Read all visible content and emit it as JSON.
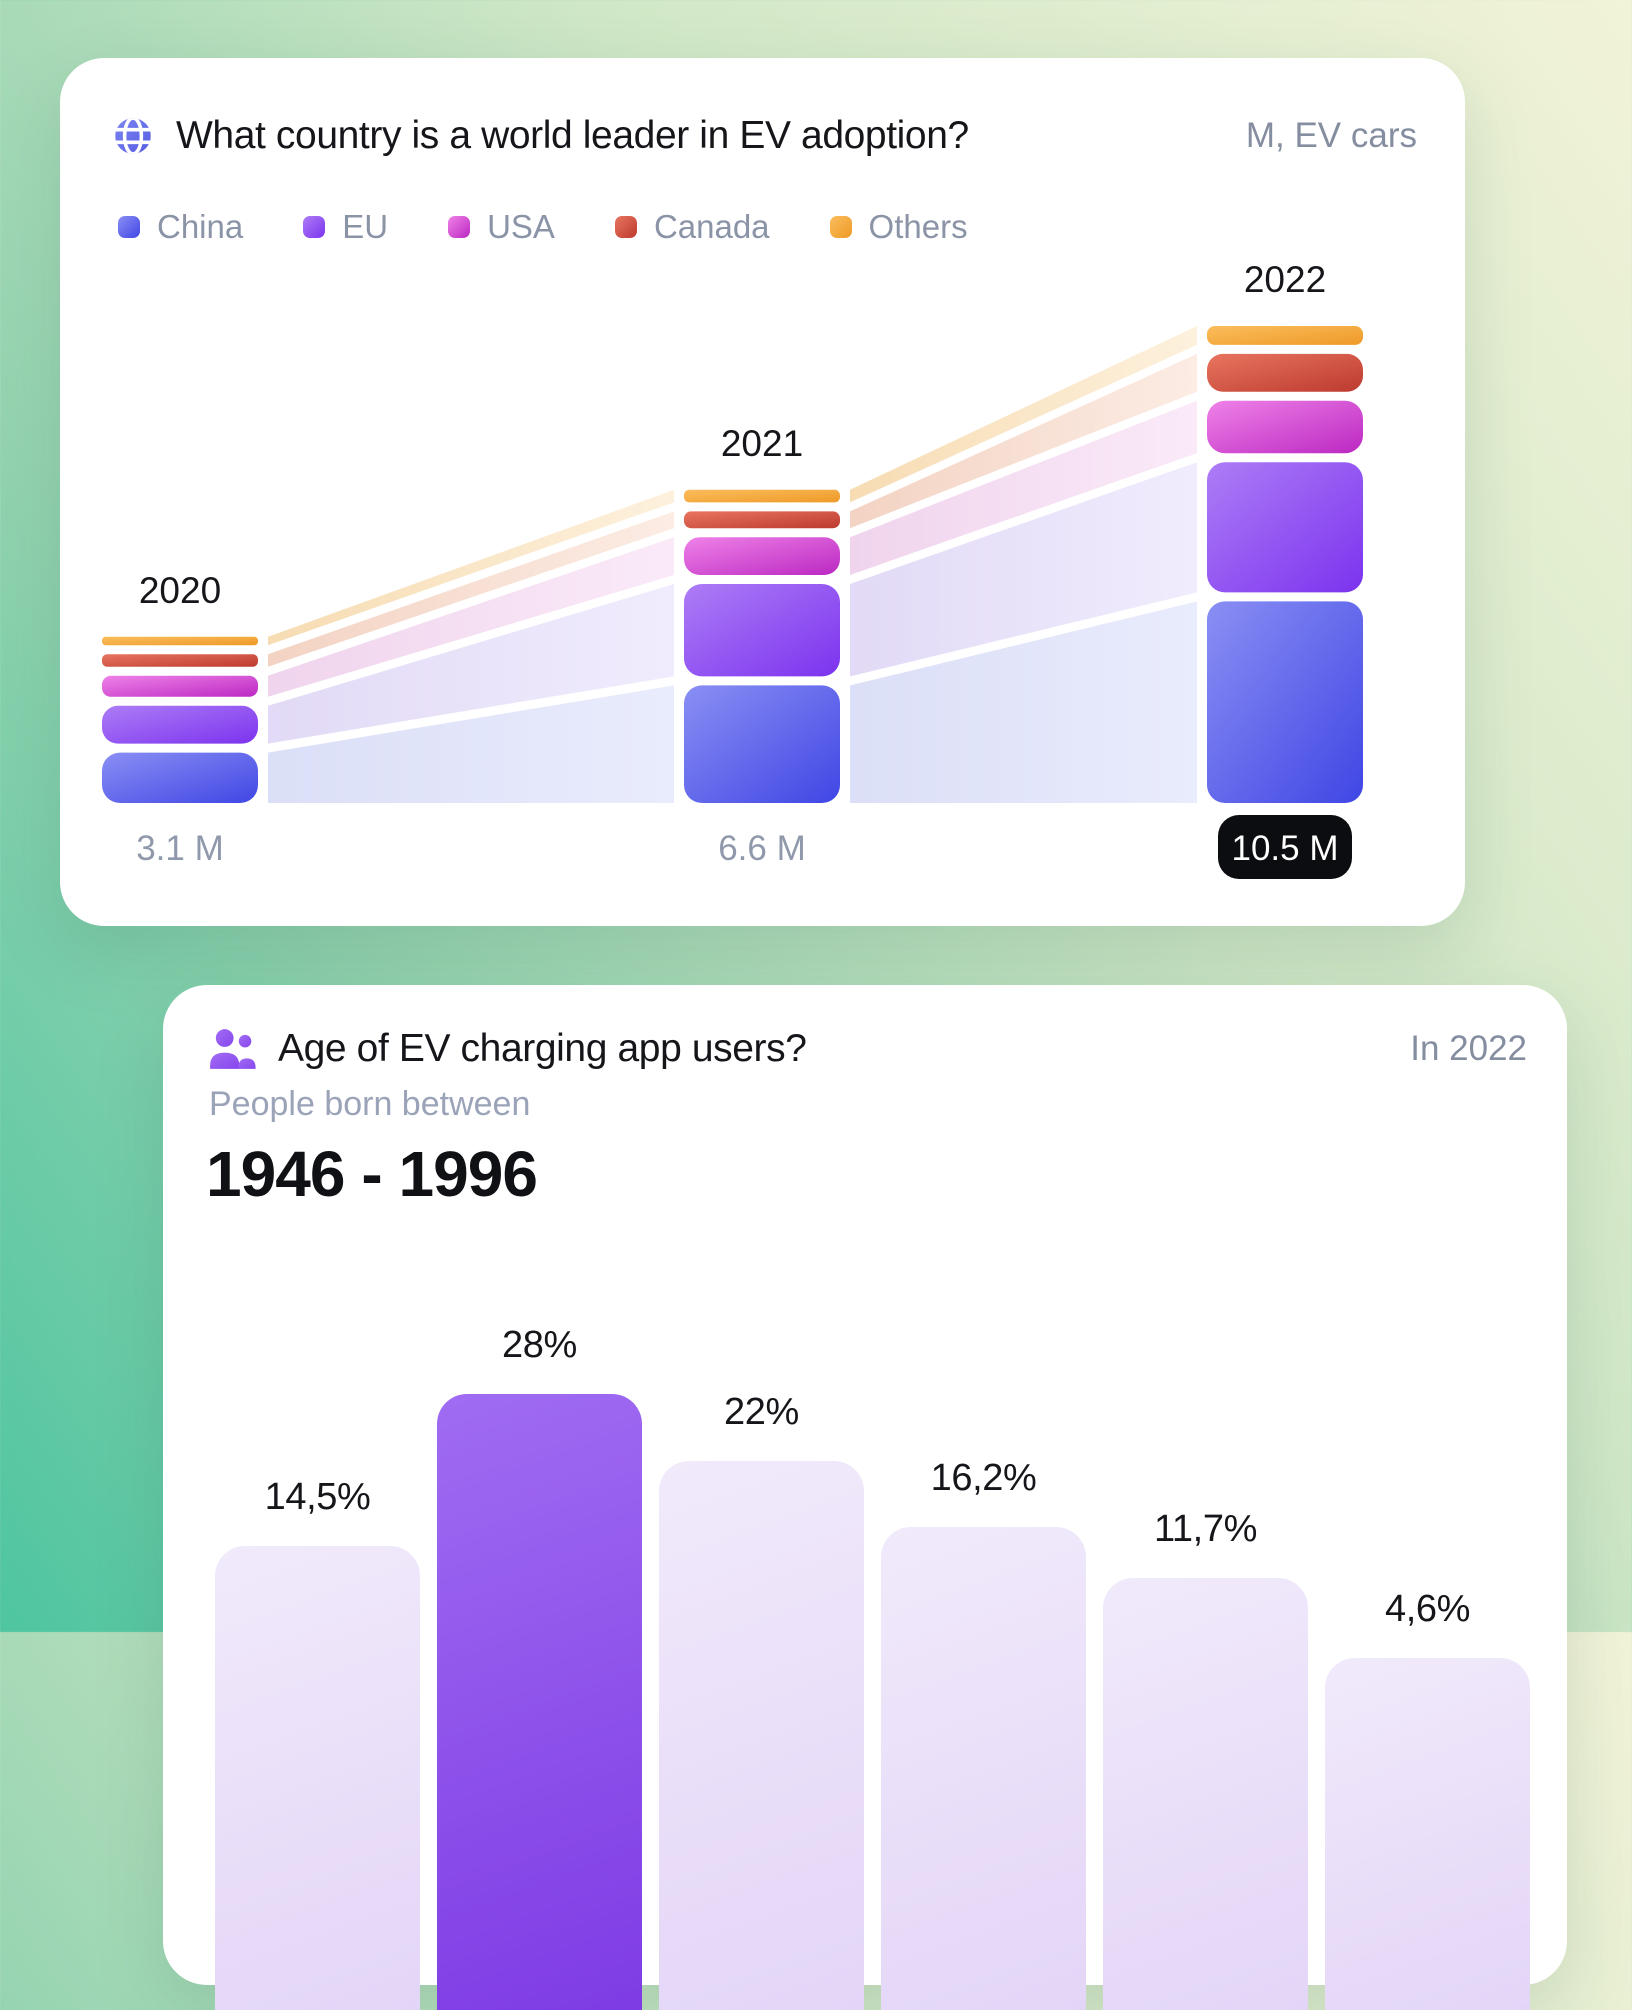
{
  "cards": {
    "ev_adoption": {
      "icon": "globe-icon",
      "title": "What country is a world leader in EV adoption?",
      "unit_label": "M, EV cars"
    },
    "age_users": {
      "icon": "people-icon",
      "title": "Age of EV charging app users?",
      "period_label": "In 2022",
      "subtitle": "People born between",
      "birth_range": "1946 - 1996"
    }
  },
  "chart_data": [
    {
      "id": "ev-adoption-flow",
      "type": "bar",
      "variant": "stacked-flow",
      "title": "What country is a world leader in EV adoption?",
      "unit": "M, EV cars",
      "legend_position": "top",
      "categories": [
        "2020",
        "2021",
        "2022"
      ],
      "totals": [
        3.1,
        6.6,
        10.5
      ],
      "total_labels": [
        "3.1 M",
        "6.6 M",
        "10.5 M"
      ],
      "highlight_total_index": 2,
      "series": [
        {
          "name": "China",
          "values": [
            1.2,
            2.8,
            4.8
          ],
          "color": "#5f68ee",
          "bar_gradient": [
            "#8a8ff4",
            "#4046e4"
          ],
          "band_gradient": [
            "#dbdff7",
            "#e9ecfc"
          ]
        },
        {
          "name": "EU",
          "values": [
            0.9,
            2.2,
            3.1
          ],
          "color": "#9766f2",
          "bar_gradient": [
            "#ad7df6",
            "#7c33ee"
          ],
          "band_gradient": [
            "#e2daf6",
            "#f0ecfd"
          ]
        },
        {
          "name": "USA",
          "values": [
            0.5,
            0.9,
            1.25
          ],
          "color": "#d44fd6",
          "bar_gradient": [
            "#ef82e8",
            "#bb28c2"
          ],
          "band_gradient": [
            "#f0d4ed",
            "#faeaf8"
          ]
        },
        {
          "name": "Canada",
          "values": [
            0.3,
            0.4,
            0.9
          ],
          "color": "#d8544a",
          "bar_gradient": [
            "#e8755f",
            "#bd3a2f"
          ],
          "band_gradient": [
            "#f3d3c3",
            "#fcece4"
          ]
        },
        {
          "name": "Others",
          "values": [
            0.2,
            0.3,
            0.45
          ],
          "color": "#f2a83e",
          "bar_gradient": [
            "#fbbd5c",
            "#ee9a28"
          ],
          "band_gradient": [
            "#f7dcb3",
            "#fdf1dd"
          ]
        }
      ]
    },
    {
      "id": "age-distribution",
      "type": "bar",
      "title": "Age of EV charging app users?",
      "period": "In 2022",
      "values": [
        14.5,
        28,
        22,
        16.2,
        11.7,
        4.6
      ],
      "value_labels": [
        "14,5%",
        "28%",
        "22%",
        "16,2%",
        "11,7%",
        "4,6%"
      ],
      "highlight_index": 1,
      "bar_colors": {
        "default_gradient": [
          "#f1eafb",
          "#e3d5f7"
        ],
        "highlight_gradient": [
          "#a06cf2",
          "#7e3be4"
        ]
      }
    }
  ],
  "colors": {
    "background_gradient": [
      "#4ec5a0",
      "#93d3b0",
      "#cfe7c6",
      "#f2f3d8"
    ],
    "card_background": "#ffffff",
    "text_primary": "#15161a",
    "text_muted": "#8b94a7",
    "pill_background": "#0c0d10",
    "pill_text": "#ffffff"
  }
}
